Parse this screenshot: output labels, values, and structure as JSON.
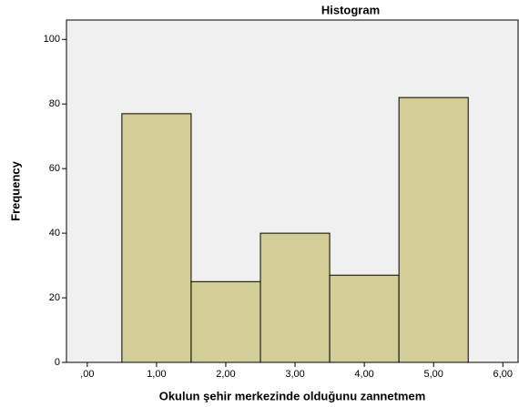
{
  "chart_data": {
    "type": "histogram",
    "title": "Histogram",
    "xlabel": "Okulun şehir merkezinde olduğunu zannetmem",
    "ylabel": "Frequency",
    "bins": [
      0.5,
      1.5,
      2.5,
      3.5,
      4.5,
      5.5
    ],
    "counts": [
      77,
      25,
      40,
      27,
      82
    ],
    "color": "#d3ce97",
    "xlim": [
      -0.3,
      6.22
    ],
    "xticks": [
      {
        "value": 0,
        "label": ",00"
      },
      {
        "value": 1,
        "label": "1,00"
      },
      {
        "value": 2,
        "label": "2,00"
      },
      {
        "value": 3,
        "label": "3,00"
      },
      {
        "value": 4,
        "label": "4,00"
      },
      {
        "value": 5,
        "label": "5,00"
      },
      {
        "value": 6,
        "label": "6,00"
      }
    ],
    "ylim": [
      0,
      106
    ],
    "yticks": [
      0,
      20,
      40,
      60,
      80,
      100
    ]
  }
}
